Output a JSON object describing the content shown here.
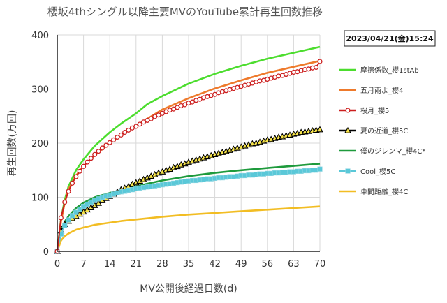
{
  "chart_data": {
    "type": "line",
    "title": "櫻坂4thシングル以降主要MVのYouTube累計再生回数推移",
    "xlabel": "MV公開後経過日数(d)",
    "ylabel": "再生回数(万回)",
    "timestamp": "2023/04/21(金)15:24",
    "xlim": [
      0,
      70
    ],
    "ylim": [
      0,
      400
    ],
    "xticks": [
      0,
      7,
      14,
      21,
      28,
      35,
      42,
      49,
      56,
      63,
      70
    ],
    "yticks": [
      0,
      100,
      200,
      300,
      400
    ],
    "grid": true,
    "legend_position": "right",
    "series": [
      {
        "name": "摩擦係数_櫻1stAb",
        "color": "#4cdd2e",
        "marker": "none",
        "x": [
          0,
          1,
          2,
          3,
          5,
          7,
          10,
          14,
          17,
          21,
          24,
          28,
          35,
          42,
          49,
          56,
          63,
          70
        ],
        "y": [
          0,
          60,
          95,
          120,
          150,
          170,
          195,
          220,
          236,
          255,
          272,
          287,
          310,
          328,
          343,
          356,
          367,
          378
        ]
      },
      {
        "name": "五月雨よ_櫻4",
        "color": "#ee7a2c",
        "marker": "none",
        "x": [
          0,
          1,
          2,
          3,
          5,
          7,
          10,
          14,
          17,
          21,
          24,
          28,
          35,
          42,
          49,
          56,
          63,
          70
        ],
        "y": [
          0,
          55,
          90,
          115,
          140,
          158,
          178,
          200,
          215,
          232,
          245,
          262,
          283,
          301,
          316,
          330,
          341,
          352
        ]
      },
      {
        "name": "桜月_櫻5",
        "color": "#cc1f1f",
        "marker": "circle",
        "x": [
          0,
          1,
          2,
          3,
          4,
          5,
          6,
          7,
          8,
          9,
          10,
          11,
          12,
          13,
          14,
          15,
          16,
          17,
          18,
          19,
          20,
          21,
          22,
          23,
          24,
          25,
          26,
          27,
          28,
          29,
          30,
          31,
          32,
          33,
          34,
          35,
          36,
          37,
          38,
          39,
          40,
          41,
          42,
          43,
          44,
          45,
          46,
          47,
          48,
          49,
          50,
          51,
          52,
          53,
          54,
          55,
          56,
          57,
          58,
          59,
          60,
          61,
          62,
          63,
          64,
          65,
          66,
          67,
          68,
          69,
          70
        ],
        "y": [
          0,
          62,
          91,
          111,
          126,
          138,
          148,
          157,
          165,
          172,
          179,
          185,
          191,
          196,
          201,
          206,
          211,
          215,
          220,
          224,
          228,
          231,
          235,
          239,
          242,
          245,
          249,
          252,
          255,
          258,
          261,
          263,
          266,
          269,
          271,
          274,
          276,
          279,
          281,
          284,
          286,
          288,
          290,
          293,
          295,
          297,
          299,
          301,
          303,
          305,
          307,
          309,
          311,
          313,
          315,
          316,
          318,
          320,
          322,
          324,
          325,
          327,
          329,
          331,
          332,
          334,
          336,
          337,
          339,
          340,
          351
        ]
      },
      {
        "name": "夏の近道_櫻5C",
        "color": "#000000",
        "marker": "triangle",
        "x": [
          0,
          1,
          2,
          3,
          4,
          5,
          6,
          7,
          8,
          9,
          10,
          11,
          12,
          13,
          14,
          15,
          16,
          17,
          18,
          19,
          20,
          21,
          22,
          23,
          24,
          25,
          26,
          27,
          28,
          29,
          30,
          31,
          32,
          33,
          34,
          35,
          36,
          37,
          38,
          39,
          40,
          41,
          42,
          43,
          44,
          45,
          46,
          47,
          48,
          49,
          50,
          51,
          52,
          53,
          54,
          55,
          56,
          57,
          58,
          59,
          60,
          61,
          62,
          63,
          64,
          65,
          66,
          67,
          68,
          69,
          70
        ],
        "y": [
          0,
          38,
          50,
          56,
          61,
          65,
          69,
          73,
          77,
          81,
          85,
          89,
          94,
          98,
          102,
          106,
          110,
          114,
          117,
          120,
          124,
          127,
          130,
          133,
          136,
          139,
          142,
          145,
          147,
          150,
          152,
          155,
          157,
          160,
          162,
          165,
          167,
          169,
          171,
          173,
          175,
          177,
          179,
          181,
          183,
          185,
          187,
          189,
          191,
          193,
          195,
          197,
          199,
          200,
          202,
          204,
          206,
          207,
          209,
          211,
          212,
          214,
          215,
          217,
          218,
          220,
          221,
          222,
          223,
          224,
          225
        ]
      },
      {
        "name": "僕のジレンマ_櫻4C*",
        "color": "#1e9a3c",
        "marker": "none",
        "x": [
          0,
          1,
          2,
          3,
          5,
          7,
          10,
          14,
          17,
          21,
          24,
          28,
          35,
          42,
          49,
          56,
          63,
          70
        ],
        "y": [
          0,
          40,
          55,
          65,
          80,
          90,
          100,
          108,
          113,
          120,
          125,
          131,
          139,
          145,
          150,
          154,
          158,
          162
        ]
      },
      {
        "name": "Cool_櫻5C",
        "color": "#5ac8d8",
        "marker": "square",
        "x": [
          0,
          1,
          2,
          3,
          4,
          5,
          6,
          7,
          8,
          9,
          10,
          11,
          12,
          13,
          14,
          15,
          16,
          17,
          18,
          19,
          20,
          21,
          22,
          23,
          24,
          25,
          26,
          27,
          28,
          29,
          30,
          31,
          32,
          33,
          34,
          35,
          36,
          37,
          38,
          39,
          40,
          41,
          42,
          43,
          44,
          45,
          46,
          47,
          48,
          49,
          50,
          51,
          52,
          53,
          54,
          55,
          56,
          57,
          58,
          59,
          60,
          61,
          62,
          63,
          64,
          65,
          66,
          67,
          68,
          69,
          70
        ],
        "y": [
          0,
          32,
          48,
          58,
          66,
          72,
          78,
          83,
          87,
          91,
          94,
          97,
          100,
          102,
          104,
          106,
          108,
          110,
          111,
          113,
          114,
          116,
          117,
          118,
          119,
          120,
          121,
          122,
          123,
          124,
          125,
          126,
          127,
          128,
          129,
          130,
          131,
          131,
          132,
          133,
          134,
          134,
          135,
          136,
          136,
          137,
          138,
          138,
          139,
          140,
          140,
          141,
          141,
          142,
          143,
          143,
          144,
          144,
          145,
          145,
          146,
          146,
          147,
          147,
          148,
          148,
          149,
          149,
          150,
          150,
          152
        ]
      },
      {
        "name": "車間距離_櫻4C",
        "color": "#f2bd23",
        "marker": "none",
        "x": [
          0,
          1,
          2,
          3,
          5,
          7,
          10,
          14,
          17,
          21,
          24,
          28,
          35,
          42,
          49,
          56,
          63,
          70
        ],
        "y": [
          0,
          20,
          28,
          33,
          40,
          44,
          49,
          53,
          56,
          59,
          61,
          64,
          68,
          71,
          74,
          77,
          80,
          83
        ]
      }
    ]
  }
}
